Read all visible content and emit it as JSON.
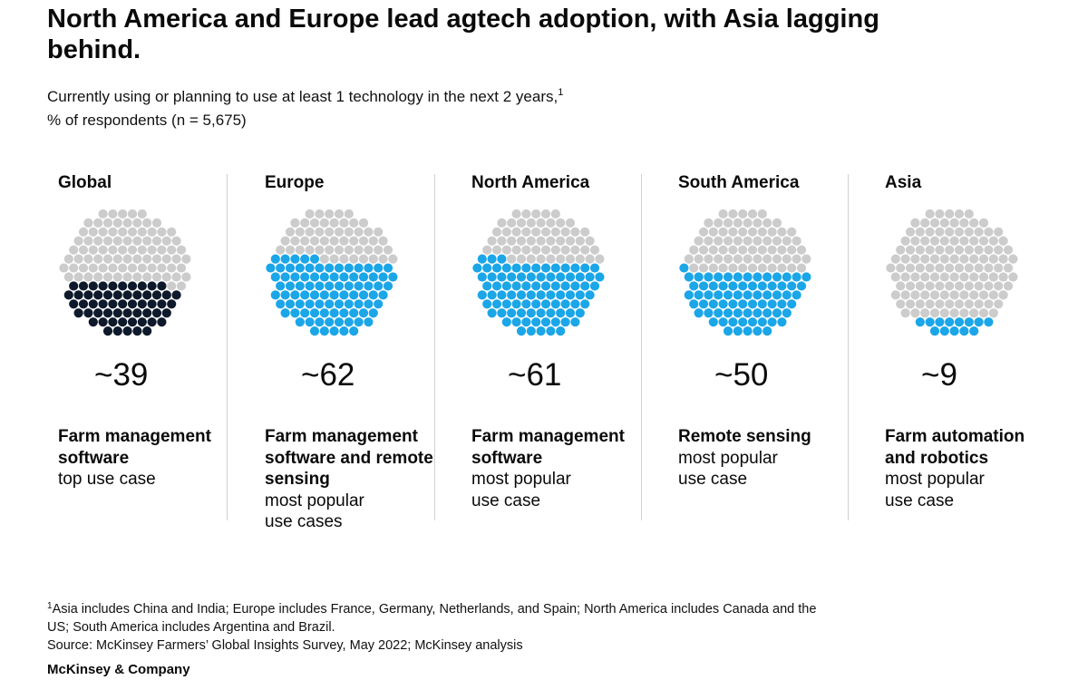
{
  "title": "North America and Europe lead agtech adoption, with Asia lagging behind.",
  "subtitle": {
    "line1": "Currently using or planning to use at least 1 technology in the next 2 years,",
    "line1_sup": "1",
    "line2": "% of respondents (n = 5,675)"
  },
  "colors": {
    "empty_dot": "#cccccc",
    "global_dot": "#0e1a2b",
    "region_dot": "#1ba6e8"
  },
  "chart_data": {
    "type": "dot-fill",
    "unit": "%",
    "panels": [
      {
        "region": "Global",
        "value": 39,
        "value_label": "~39",
        "color": "#0e1a2b",
        "use_case_bold": [
          "Farm management",
          "software"
        ],
        "use_case_normal": [
          "top use case"
        ]
      },
      {
        "region": "Europe",
        "value": 62,
        "value_label": "~62",
        "color": "#1ba6e8",
        "use_case_bold": [
          "Farm management",
          "software and remote",
          "sensing"
        ],
        "use_case_normal": [
          "most popular",
          "use cases"
        ]
      },
      {
        "region": "North America",
        "value": 61,
        "value_label": "~61",
        "color": "#1ba6e8",
        "use_case_bold": [
          "Farm management",
          "software"
        ],
        "use_case_normal": [
          "most popular",
          "use case"
        ]
      },
      {
        "region": "South America",
        "value": 50,
        "value_label": "~50",
        "color": "#1ba6e8",
        "use_case_bold": [
          "Remote sensing"
        ],
        "use_case_normal": [
          "most popular",
          "use case"
        ]
      },
      {
        "region": "Asia",
        "value": 9,
        "value_label": "~9",
        "color": "#1ba6e8",
        "use_case_bold": [
          "Farm automation",
          "and robotics"
        ],
        "use_case_normal": [
          "most popular",
          "use case"
        ]
      }
    ]
  },
  "footnote": {
    "sup": "1",
    "line1": "Asia includes China and India; Europe includes France, Germany, Netherlands, and Spain; North America includes Canada and the",
    "line2": "US; South America includes Argentina and Brazil.",
    "line3": "Source: McKinsey Farmers’ Global Insights Survey, May 2022; McKinsey analysis"
  },
  "brand": "McKinsey & Company"
}
